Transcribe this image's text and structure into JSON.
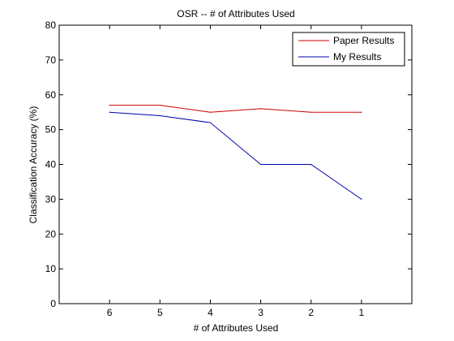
{
  "chart_data": {
    "type": "line",
    "title": "OSR -- # of Attributes Used",
    "xlabel": "# of Attributes Used",
    "ylabel": "Classification Accuracy (%)",
    "x_reversed": true,
    "xlim": [
      0,
      7
    ],
    "ylim": [
      0,
      80
    ],
    "x": [
      6,
      5,
      4,
      3,
      2,
      1
    ],
    "x_ticks": [
      6,
      5,
      4,
      3,
      2,
      1,
      0
    ],
    "x_tick_labels": [
      "6",
      "5",
      "4",
      "3",
      "2",
      "1",
      ""
    ],
    "y_ticks": [
      0,
      10,
      20,
      30,
      40,
      50,
      60,
      70,
      80
    ],
    "grid": false,
    "legend_position": "top-right",
    "series": [
      {
        "name": "Paper Results",
        "color": "#cc0000",
        "values": [
          57,
          57,
          55,
          56,
          55,
          55
        ]
      },
      {
        "name": "My Results",
        "color": "#0000aa",
        "values": [
          55,
          54,
          52,
          40,
          40,
          30
        ]
      }
    ]
  }
}
